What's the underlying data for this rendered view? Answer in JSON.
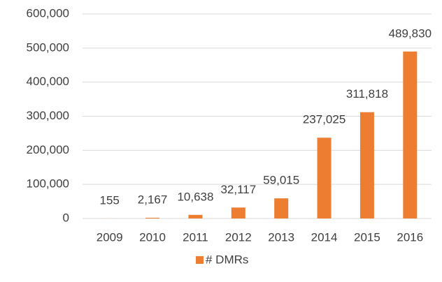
{
  "chart_data": {
    "type": "bar",
    "categories": [
      "2009",
      "2010",
      "2011",
      "2012",
      "2013",
      "2014",
      "2015",
      "2016"
    ],
    "series": [
      {
        "name": "# DMRs",
        "color": "#ed7d31",
        "values": [
          155,
          2167,
          10638,
          32117,
          59015,
          237025,
          311818,
          489830
        ],
        "value_labels": [
          "155",
          "2,167",
          "10,638",
          "32,117",
          "59,015",
          "237,025",
          "311,818",
          "489,830"
        ]
      }
    ],
    "ylim": [
      0,
      600000
    ],
    "yticks": [
      0,
      {
        "value": 100000,
        "label": "100,000"
      },
      {
        "value": 200000,
        "label": "200,000"
      },
      {
        "value": 300000,
        "label": "300,000"
      },
      {
        "value": 400000,
        "label": "400,000"
      },
      {
        "value": 500000,
        "label": "500,000"
      },
      {
        "value": 600000,
        "label": "600,000"
      }
    ],
    "grid": true,
    "legend": "bottom"
  }
}
